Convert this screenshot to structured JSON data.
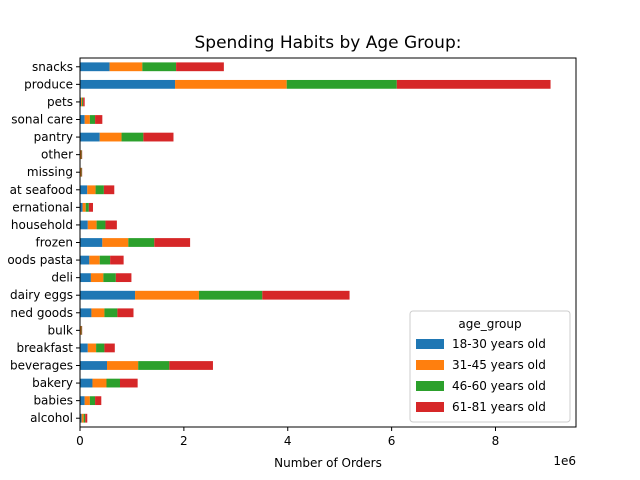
{
  "chart_data": {
    "type": "bar",
    "orientation": "horizontal",
    "stacked": true,
    "title": "Spending Habits by Age Group:",
    "xlabel": "Number of Orders",
    "ylabel": "",
    "x_offset_label": "1e6",
    "x_scale": 1000000,
    "xlim": [
      0,
      9.55
    ],
    "xticks": [
      0,
      2,
      4,
      6,
      8
    ],
    "grid": false,
    "legend_title": "age_group",
    "legend_position": "lower-right",
    "categories": [
      "alcohol",
      "babies",
      "bakery",
      "beverages",
      "breakfast",
      "bulk",
      "canned goods",
      "dairy eggs",
      "deli",
      "dry goods pasta",
      "frozen",
      "household",
      "international",
      "meat seafood",
      "missing",
      "other",
      "pantry",
      "personal care",
      "pets",
      "produce",
      "snacks"
    ],
    "category_labels": [
      "alcohol",
      "babies",
      "bakery",
      "beverages",
      "breakfast",
      "bulk",
      "ned goods",
      "dairy eggs",
      "deli",
      "oods pasta",
      "frozen",
      "household",
      "ernational",
      "at seafood",
      "missing",
      "other",
      "pantry",
      "sonal care",
      "pets",
      "produce",
      "snacks"
    ],
    "series": [
      {
        "name": "18-30 years old",
        "color": "#1f77b4",
        "values": [
          0.03,
          0.09,
          0.24,
          0.52,
          0.15,
          0.01,
          0.22,
          1.06,
          0.21,
          0.18,
          0.43,
          0.15,
          0.05,
          0.14,
          0.01,
          0.01,
          0.38,
          0.09,
          0.02,
          1.83,
          0.57
        ]
      },
      {
        "name": "31-45 years old",
        "color": "#ff7f0e",
        "values": [
          0.04,
          0.1,
          0.27,
          0.6,
          0.16,
          0.01,
          0.25,
          1.23,
          0.24,
          0.2,
          0.5,
          0.17,
          0.06,
          0.16,
          0.01,
          0.01,
          0.42,
          0.1,
          0.02,
          2.15,
          0.63
        ]
      },
      {
        "name": "46-60 years old",
        "color": "#2ca02c",
        "values": [
          0.03,
          0.1,
          0.26,
          0.6,
          0.16,
          0.01,
          0.25,
          1.22,
          0.24,
          0.2,
          0.5,
          0.17,
          0.06,
          0.16,
          0.01,
          0.01,
          0.42,
          0.1,
          0.02,
          2.12,
          0.65
        ]
      },
      {
        "name": "61-81 years old",
        "color": "#d62728",
        "values": [
          0.04,
          0.12,
          0.34,
          0.84,
          0.2,
          0.01,
          0.31,
          1.68,
          0.3,
          0.26,
          0.69,
          0.22,
          0.08,
          0.2,
          0.01,
          0.01,
          0.58,
          0.14,
          0.03,
          2.96,
          0.92
        ]
      }
    ]
  }
}
